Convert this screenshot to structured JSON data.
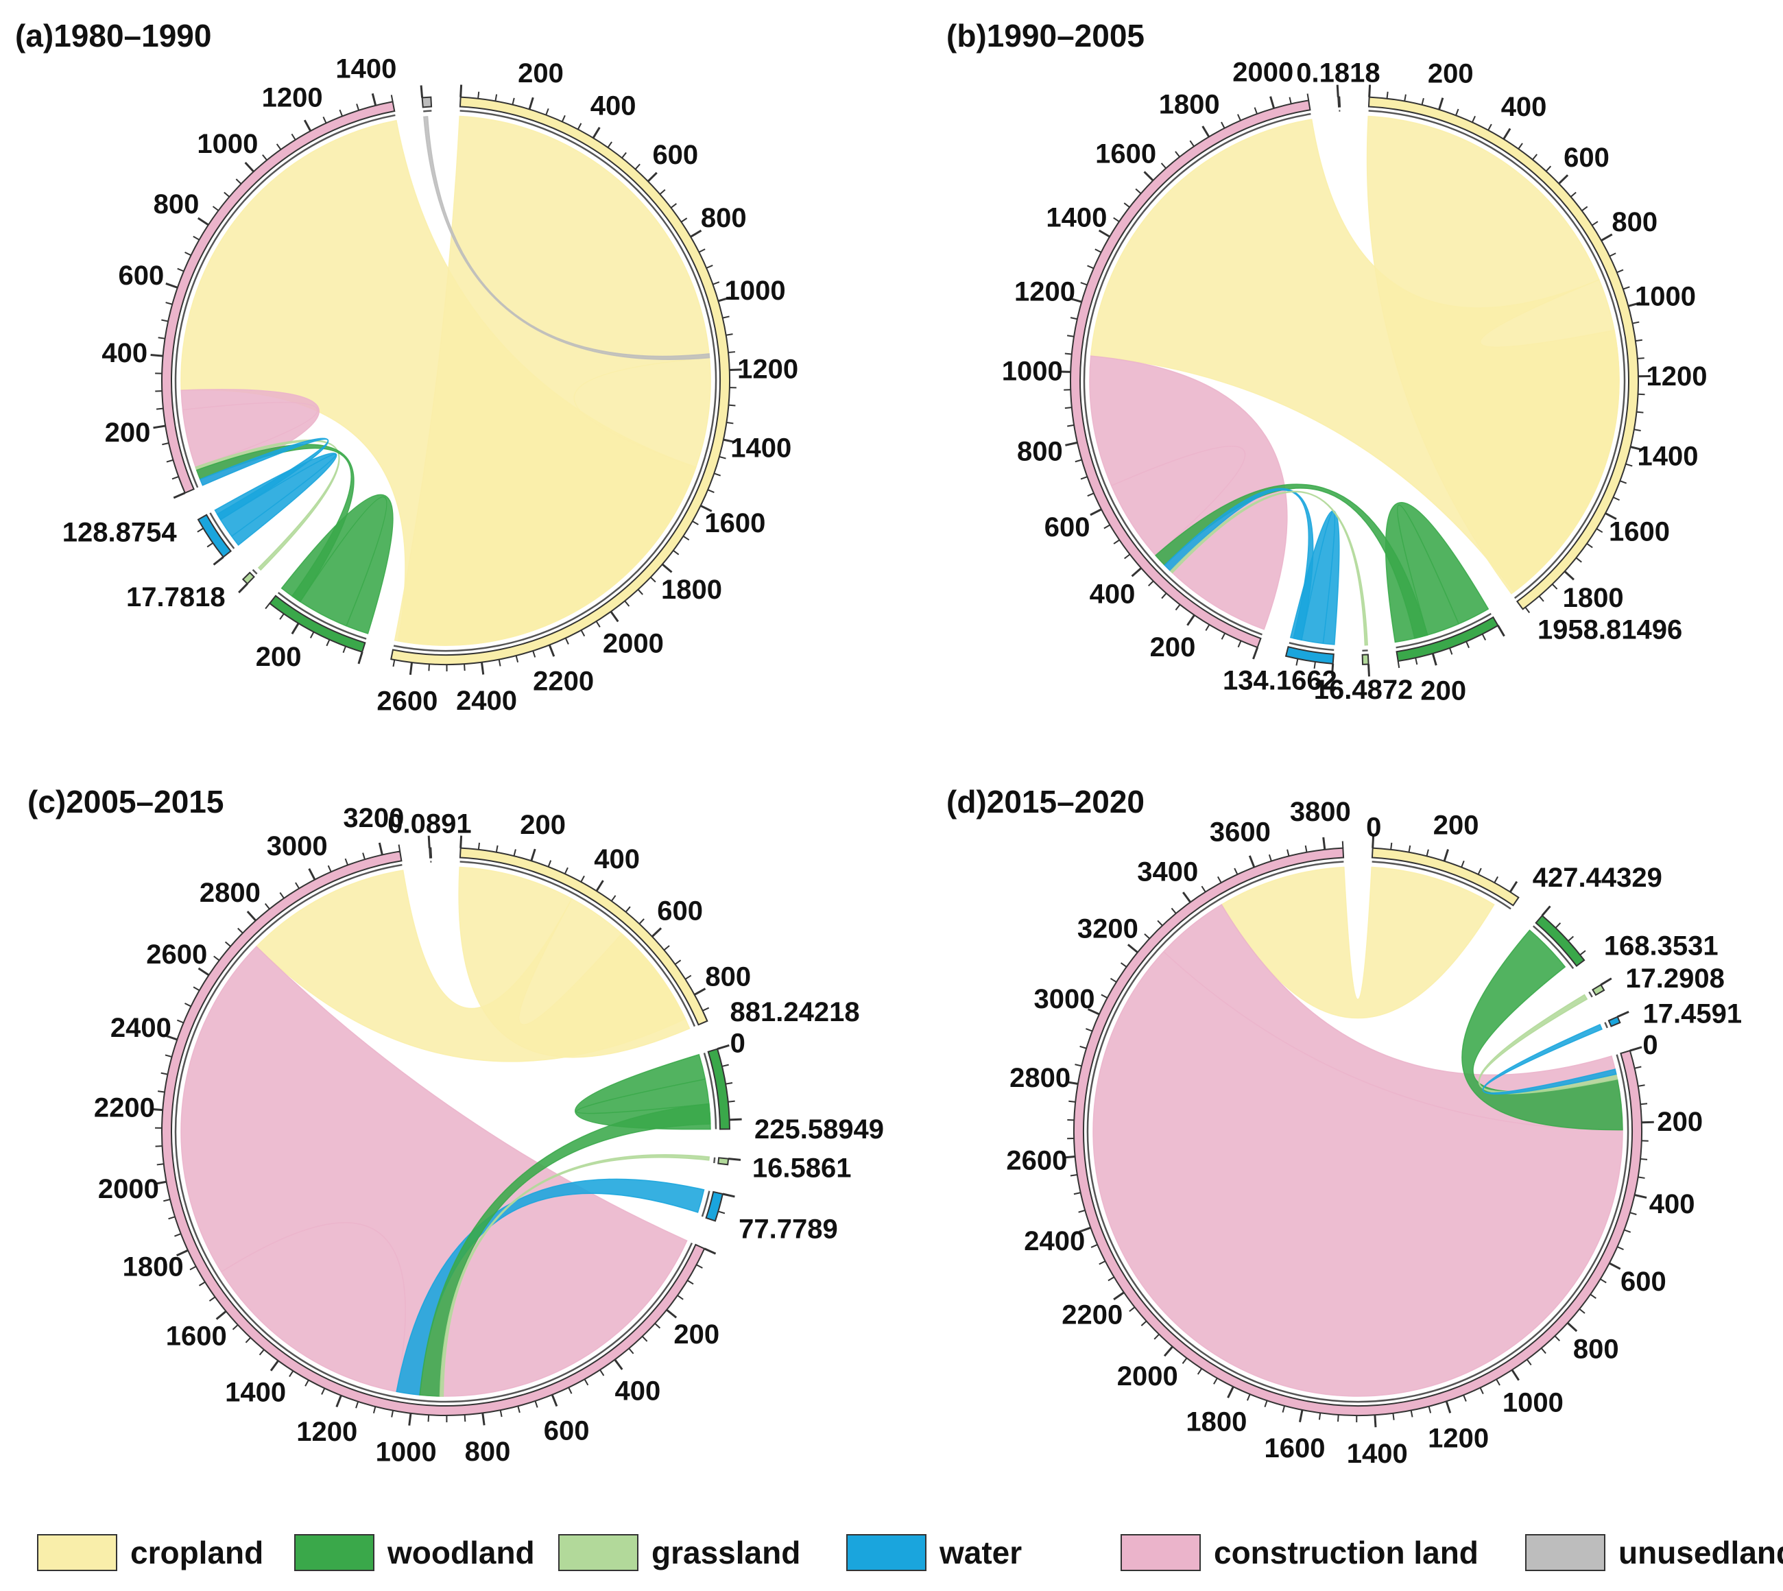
{
  "chart_data": [
    {
      "type": "chord",
      "title": "(a)1980–1990",
      "segments": [
        {
          "name": "cropland",
          "total": 2660,
          "tick_labels": [
            "200",
            "400",
            "600",
            "800",
            "1000",
            "1200",
            "1400",
            "1600",
            "1800",
            "2000",
            "2200",
            "2400",
            "2600"
          ]
        },
        {
          "name": "woodland",
          "total": 300,
          "tick_labels": [
            "200"
          ]
        },
        {
          "name": "grassland",
          "total": 17.7818,
          "end_label": "17.7818",
          "tick_labels": []
        },
        {
          "name": "water",
          "total": 128.8754,
          "end_label": "128.8754",
          "tick_labels": []
        },
        {
          "name": "construction land",
          "total": 1450,
          "tick_labels": [
            "200",
            "400",
            "600",
            "800",
            "1000",
            "1200",
            "1400"
          ]
        },
        {
          "name": "unusedland",
          "total": 25,
          "tick_labels": []
        }
      ],
      "flows": [
        {
          "from": "cropland",
          "to": "cropland",
          "value": 1500
        },
        {
          "from": "cropland",
          "to": "construction land",
          "value": 1150
        },
        {
          "from": "construction land",
          "to": "construction land",
          "value": 240
        },
        {
          "from": "woodland",
          "to": "woodland",
          "value": 230
        },
        {
          "from": "water",
          "to": "water",
          "value": 95
        },
        {
          "from": "grassland",
          "to": "construction land",
          "value": 10
        },
        {
          "from": "woodland",
          "to": "construction land",
          "value": 30
        },
        {
          "from": "water",
          "to": "construction land",
          "value": 20
        },
        {
          "from": "unusedland",
          "to": "cropland",
          "value": 12
        }
      ]
    },
    {
      "type": "chord",
      "title": "(b)1990–2005",
      "segments": [
        {
          "name": "cropland",
          "total": 1958.81496,
          "end_label": "1958.81496",
          "tick_labels": [
            "200",
            "400",
            "600",
            "800",
            "1000",
            "1200",
            "1400",
            "1600",
            "1800"
          ]
        },
        {
          "name": "woodland",
          "total": 300,
          "tick_labels": [
            "200"
          ]
        },
        {
          "name": "grassland",
          "total": 16.4872,
          "end_label": "16.4872",
          "tick_labels": []
        },
        {
          "name": "water",
          "total": 134.1662,
          "end_label": "134.1662",
          "tick_labels": []
        },
        {
          "name": "construction land",
          "total": 2100,
          "tick_labels": [
            "200",
            "400",
            "600",
            "800",
            "1000",
            "1200",
            "1400",
            "1600",
            "1800",
            "2000"
          ]
        },
        {
          "name": "unusedland",
          "total": 0.1818,
          "end_label": "0.1818",
          "tick_labels": []
        }
      ],
      "flows": [
        {
          "from": "cropland",
          "to": "cropland",
          "value": 900
        },
        {
          "from": "cropland",
          "to": "construction land",
          "value": 1050
        },
        {
          "from": "construction land",
          "to": "construction land",
          "value": 650
        },
        {
          "from": "woodland",
          "to": "woodland",
          "value": 200
        },
        {
          "from": "water",
          "to": "water",
          "value": 100
        },
        {
          "from": "woodland",
          "to": "construction land",
          "value": 40
        },
        {
          "from": "water",
          "to": "construction land",
          "value": 25
        },
        {
          "from": "grassland",
          "to": "construction land",
          "value": 8
        }
      ]
    },
    {
      "type": "chord",
      "title": "(c)2005–2015",
      "segments": [
        {
          "name": "cropland",
          "total": 881.24218,
          "end_label": "881.24218",
          "tick_labels": [
            "200",
            "400",
            "600",
            "800"
          ]
        },
        {
          "name": "woodland",
          "total": 225.58949,
          "end_label": "225.58949",
          "start_label": "0",
          "tick_labels": []
        },
        {
          "name": "grassland",
          "total": 16.5861,
          "end_label": "16.5861",
          "tick_labels": []
        },
        {
          "name": "water",
          "total": 77.7789,
          "end_label": "77.7789",
          "tick_labels": []
        },
        {
          "name": "construction land",
          "total": 3250,
          "tick_labels": [
            "200",
            "400",
            "600",
            "800",
            "1000",
            "1200",
            "1400",
            "1600",
            "1800",
            "2000",
            "2200",
            "2400",
            "2600",
            "2800",
            "3000",
            "3200"
          ]
        },
        {
          "name": "unusedland",
          "total": 0.0891,
          "end_label": "0.0891",
          "tick_labels": []
        }
      ],
      "flows": [
        {
          "from": "cropland",
          "to": "cropland",
          "value": 350
        },
        {
          "from": "cropland",
          "to": "construction land",
          "value": 500
        },
        {
          "from": "construction land",
          "to": "construction land",
          "value": 1700
        },
        {
          "from": "woodland",
          "to": "woodland",
          "value": 150
        },
        {
          "from": "water",
          "to": "construction land",
          "value": 70
        },
        {
          "from": "woodland",
          "to": "construction land",
          "value": 60
        },
        {
          "from": "grassland",
          "to": "construction land",
          "value": 10
        }
      ]
    },
    {
      "type": "chord",
      "title": "(d)2015–2020",
      "segments": [
        {
          "name": "cropland",
          "total": 427.44329,
          "end_label": "427.44329",
          "start_label": "0",
          "tick_labels": [
            "200"
          ]
        },
        {
          "name": "woodland",
          "total": 168.3531,
          "end_label": "168.3531",
          "tick_labels": []
        },
        {
          "name": "grassland",
          "total": 17.2908,
          "end_label": "17.2908",
          "tick_labels": []
        },
        {
          "name": "water",
          "total": 17.4591,
          "end_label": "17.4591",
          "tick_labels": []
        },
        {
          "name": "construction land",
          "total": 3850,
          "start_label": "0",
          "tick_labels": [
            "200",
            "400",
            "600",
            "800",
            "1000",
            "1200",
            "1400",
            "1600",
            "1800",
            "2000",
            "2200",
            "2400",
            "2600",
            "2800",
            "3000",
            "3200",
            "3400",
            "3600",
            "3800"
          ]
        }
      ],
      "flows": [
        {
          "from": "cropland",
          "to": "construction land",
          "value": 380
        },
        {
          "from": "construction land",
          "to": "construction land",
          "value": 3250
        },
        {
          "from": "woodland",
          "to": "construction land",
          "value": 150
        },
        {
          "from": "grassland",
          "to": "construction land",
          "value": 15
        },
        {
          "from": "water",
          "to": "construction land",
          "value": 15
        }
      ]
    }
  ],
  "legend": [
    {
      "label": "cropland",
      "color": "#f9eeaa"
    },
    {
      "label": "woodland",
      "color": "#3aa84a"
    },
    {
      "label": "grassland",
      "color": "#b2d99a"
    },
    {
      "label": "water",
      "color": "#1aa5dd"
    },
    {
      "label": "construction land",
      "color": "#ebb4cb"
    },
    {
      "label": "unusedland",
      "color": "#bdbdbd"
    }
  ]
}
